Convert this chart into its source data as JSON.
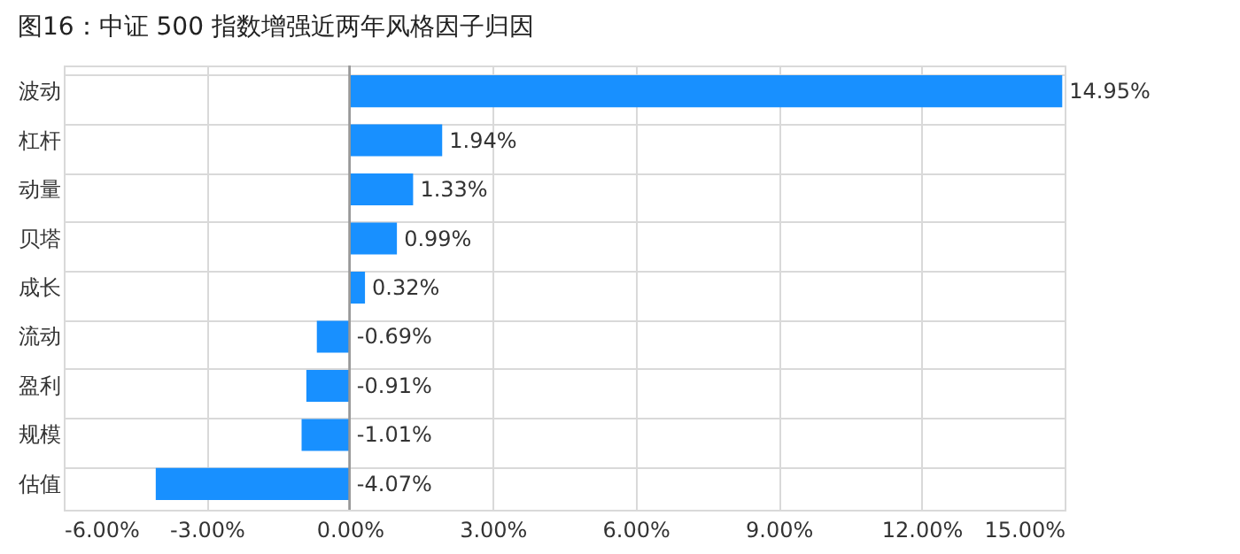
{
  "chart_data": {
    "type": "bar",
    "title": "图16：中证 500 指数增强近两年风格因子归因",
    "orientation": "horizontal",
    "categories": [
      "波动",
      "杠杆",
      "动量",
      "贝塔",
      "成长",
      "流动",
      "盈利",
      "规模",
      "估值"
    ],
    "values": [
      14.95,
      1.94,
      1.33,
      0.99,
      0.32,
      -0.69,
      -0.91,
      -1.01,
      -4.07
    ],
    "value_labels": [
      "14.95%",
      "1.94%",
      "1.33%",
      "0.99%",
      "0.32%",
      "-0.69%",
      "-0.91%",
      "-1.01%",
      "-4.07%"
    ],
    "color": "#1890ff",
    "xlim": [
      -6,
      15
    ],
    "xticks": [
      {
        "value": -6,
        "label": "-6.00%"
      },
      {
        "value": -3,
        "label": "-3.00%"
      },
      {
        "value": 0,
        "label": "0.00%"
      },
      {
        "value": 3,
        "label": "3.00%"
      },
      {
        "value": 6,
        "label": "6.00%"
      },
      {
        "value": 9,
        "label": "9.00%"
      },
      {
        "value": 12,
        "label": "12.00%"
      },
      {
        "value": 15,
        "label": "15.00%"
      }
    ],
    "grid": true
  }
}
